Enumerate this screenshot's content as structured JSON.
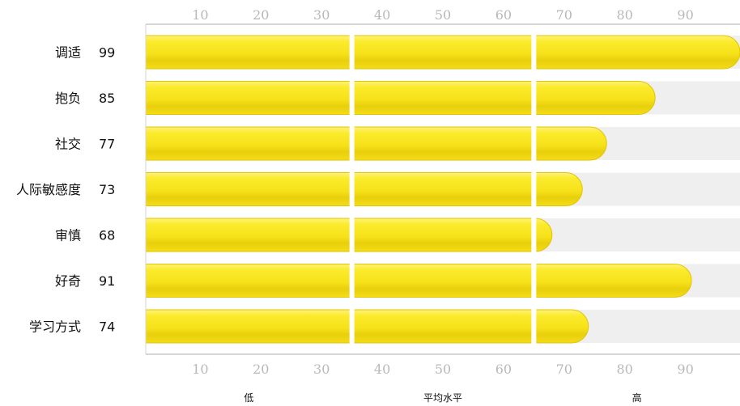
{
  "chart_data": {
    "type": "bar",
    "orientation": "horizontal",
    "categories": [
      "调适",
      "抱负",
      "社交",
      "人际敏感度",
      "审慎",
      "好奇",
      "学习方式"
    ],
    "values": [
      99,
      85,
      77,
      73,
      68,
      91,
      74
    ],
    "value_labels": [
      "99",
      "85",
      "77",
      "73",
      "68",
      "91",
      "74"
    ],
    "xlim": [
      1,
      99
    ],
    "ticks": [
      "10",
      "20",
      "30",
      "40",
      "50",
      "60",
      "70",
      "80",
      "90"
    ],
    "tick_values": [
      10,
      20,
      30,
      40,
      50,
      60,
      70,
      80,
      90
    ],
    "zone_bounds": [
      35,
      65
    ],
    "zone_labels": [
      "低",
      "平均水平",
      "高"
    ],
    "bar_color": "#f5e21a",
    "bar_edge_color": "#e2c400",
    "track_color": "#efefef",
    "legend": "none",
    "grid": false
  }
}
